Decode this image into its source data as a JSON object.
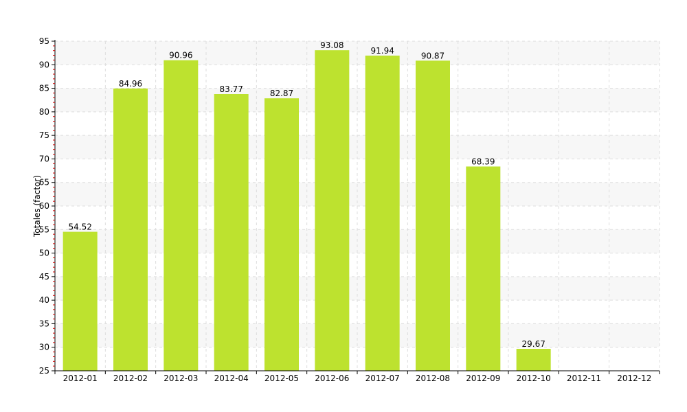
{
  "chart_data": {
    "type": "bar",
    "ylabel": "Totales (factor)",
    "xlabel": "",
    "ylim": [
      25,
      95
    ],
    "y_ticks": [
      25,
      30,
      35,
      40,
      45,
      50,
      55,
      60,
      65,
      70,
      75,
      80,
      85,
      90,
      95
    ],
    "categories": [
      "2012-01",
      "2012-02",
      "2012-03",
      "2012-04",
      "2012-05",
      "2012-06",
      "2012-07",
      "2012-08",
      "2012-09",
      "2012-10",
      "2012-11",
      "2012-12"
    ],
    "values": [
      54.52,
      84.96,
      90.96,
      83.77,
      82.87,
      93.08,
      91.94,
      90.87,
      68.39,
      29.67,
      null,
      null
    ],
    "data_labels": [
      "54.52",
      "84.96",
      "90.96",
      "83.77",
      "82.87",
      "93.08",
      "91.94",
      "90.87",
      "68.39",
      "29.67",
      "",
      ""
    ],
    "grid": true,
    "legend": "none",
    "colors": {
      "bar": "#bde22f",
      "band": "#f7f7f7",
      "grid": "#dddddd",
      "axis": "#000000",
      "minor_tick": "#cc0000"
    }
  }
}
